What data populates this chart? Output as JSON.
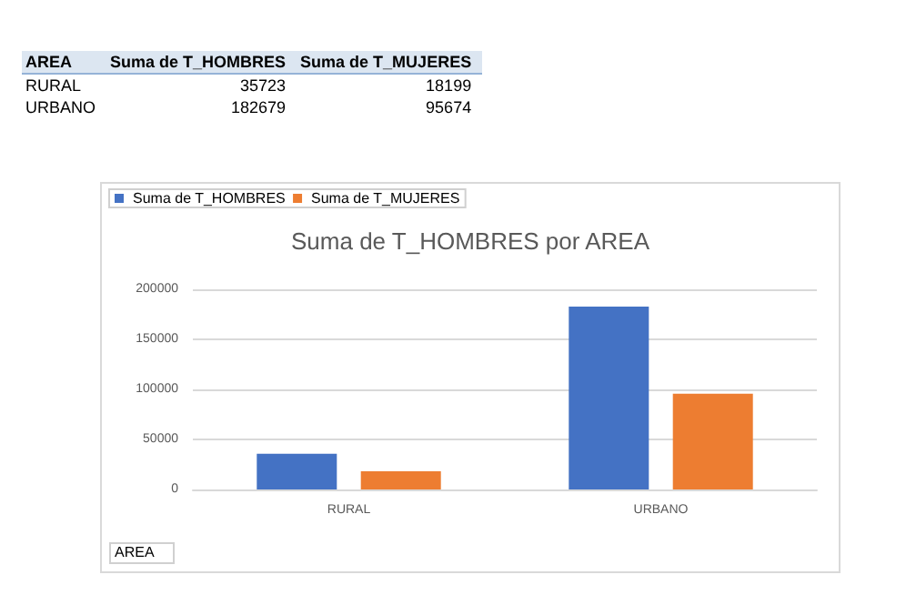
{
  "chart_data": [
    {
      "type": "other",
      "legend_title": "AREA",
      "data_labels": true,
      "categories": [
        "RURAL",
        "URBANO"
      ],
      "series": [
        {
          "name": "Suma de T_HOMBRES",
          "values": [
            35723,
            182679
          ]
        },
        {
          "name": "Suma de T_MUJERES",
          "values": [
            18199,
            95674
          ]
        }
      ]
    },
    {
      "type": "bar",
      "title": "Suma de T_HOMBRES por AREA",
      "xlabel": "AREA",
      "categories": [
        "RURAL",
        "URBANO"
      ],
      "series": [
        {
          "name": "Suma de T_HOMBRES",
          "color": "#4472c4",
          "values": [
            35723,
            182679
          ]
        },
        {
          "name": "Suma de T_MUJERES",
          "color": "#ed7d31",
          "values": [
            18199,
            95674
          ]
        }
      ],
      "ylim": [
        0,
        200000
      ],
      "yticks": [
        0,
        50000,
        100000,
        150000,
        200000
      ],
      "grid": "y",
      "legend": "top left"
    }
  ]
}
